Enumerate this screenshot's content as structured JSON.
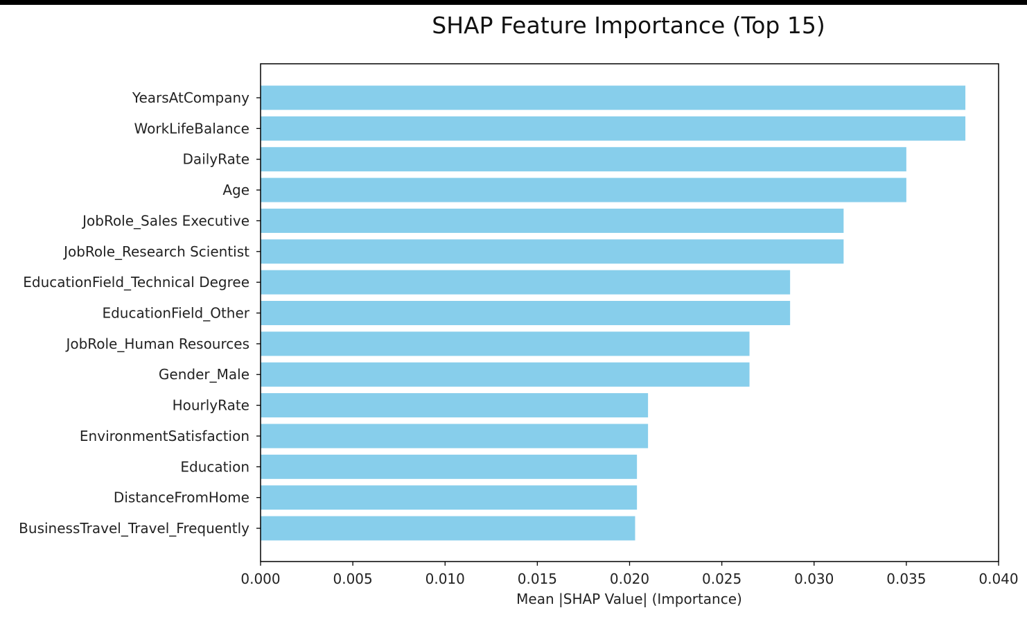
{
  "chart_data": {
    "type": "bar",
    "orientation": "horizontal",
    "title": "SHAP Feature Importance (Top 15)",
    "xlabel": "Mean |SHAP Value| (Importance)",
    "ylabel": "",
    "xlim": [
      0,
      0.04
    ],
    "xticks": [
      "0.000",
      "0.005",
      "0.010",
      "0.015",
      "0.020",
      "0.025",
      "0.030",
      "0.035",
      "0.040"
    ],
    "xtick_values": [
      0,
      0.005,
      0.01,
      0.015,
      0.02,
      0.025,
      0.03,
      0.035,
      0.04
    ],
    "grid": false,
    "bar_color": "#87CEEB",
    "categories": [
      "YearsAtCompany",
      "WorkLifeBalance",
      "DailyRate",
      "Age",
      "JobRole_Sales Executive",
      "JobRole_Research Scientist",
      "EducationField_Technical Degree",
      "EducationField_Other",
      "JobRole_Human Resources",
      "Gender_Male",
      "HourlyRate",
      "EnvironmentSatisfaction",
      "Education",
      "DistanceFromHome",
      "BusinessTravel_Travel_Frequently"
    ],
    "values": [
      0.0382,
      0.0382,
      0.035,
      0.035,
      0.0316,
      0.0316,
      0.0287,
      0.0287,
      0.0265,
      0.0265,
      0.021,
      0.021,
      0.0204,
      0.0204,
      0.0203
    ]
  }
}
